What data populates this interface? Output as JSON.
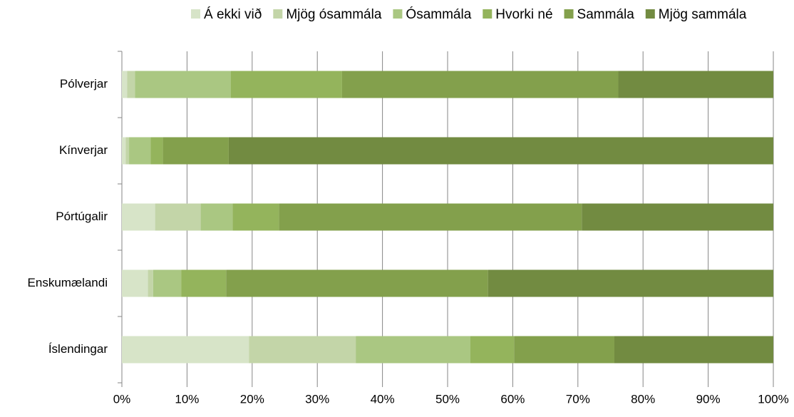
{
  "chart_data": {
    "type": "stacked_barh",
    "categories": [
      "Pólverjar",
      "Kínverjar",
      "Pórtúgalir",
      "Enskumælandi",
      "Íslendingar"
    ],
    "series": [
      {
        "name": "Á ekki við",
        "color": "#d7e4c8",
        "values": [
          0.8,
          0.6,
          5.1,
          4.0,
          19.5
        ]
      },
      {
        "name": "Mjög ósammála",
        "color": "#c3d5a8",
        "values": [
          1.2,
          0.5,
          7.0,
          0.8,
          16.4
        ]
      },
      {
        "name": "Ósammála",
        "color": "#aac782",
        "values": [
          14.7,
          3.3,
          4.9,
          4.3,
          17.6
        ]
      },
      {
        "name": "Hvorki né",
        "color": "#94b45c",
        "values": [
          17.1,
          1.9,
          7.1,
          6.9,
          6.7
        ]
      },
      {
        "name": "Sammála",
        "color": "#83a04c",
        "values": [
          42.4,
          10.1,
          46.5,
          40.2,
          15.4
        ]
      },
      {
        "name": "Mjög sammála",
        "color": "#728b41",
        "values": [
          23.8,
          83.6,
          29.4,
          43.8,
          24.4
        ]
      }
    ],
    "xlim": [
      0,
      100
    ],
    "xticks": [
      {
        "value": 0,
        "label": "0%"
      },
      {
        "value": 10,
        "label": "10%"
      },
      {
        "value": 20,
        "label": "20%"
      },
      {
        "value": 30,
        "label": "30%"
      },
      {
        "value": 40,
        "label": "40%"
      },
      {
        "value": 50,
        "label": "50%"
      },
      {
        "value": 60,
        "label": "60%"
      },
      {
        "value": 70,
        "label": "70%"
      },
      {
        "value": 80,
        "label": "80%"
      },
      {
        "value": 90,
        "label": "90%"
      },
      {
        "value": 100,
        "label": "100%"
      }
    ],
    "grid": true,
    "legend": "top"
  }
}
